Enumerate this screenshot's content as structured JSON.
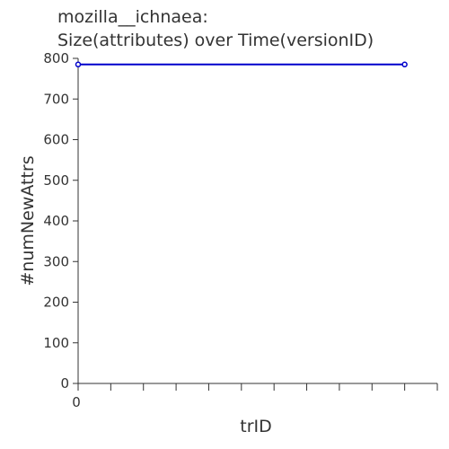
{
  "chart_data": {
    "type": "line",
    "title_lines": [
      "mozilla__ichnaea:",
      "Size(attributes) over Time(versionID)"
    ],
    "xlabel": "trID",
    "ylabel": "#numNewAttrs",
    "x_tick_labels": [
      "0"
    ],
    "y_ticks": [
      0,
      100,
      200,
      300,
      400,
      500,
      600,
      700,
      800
    ],
    "ylim": [
      0,
      800
    ],
    "x_minor_tick_count": 11,
    "grid": false,
    "legend": "none",
    "series": [
      {
        "color": "#0000cc",
        "points": [
          {
            "x": 0,
            "y": 785
          },
          {
            "x": 10,
            "y": 785
          }
        ]
      }
    ],
    "xlim": [
      0,
      11
    ]
  }
}
